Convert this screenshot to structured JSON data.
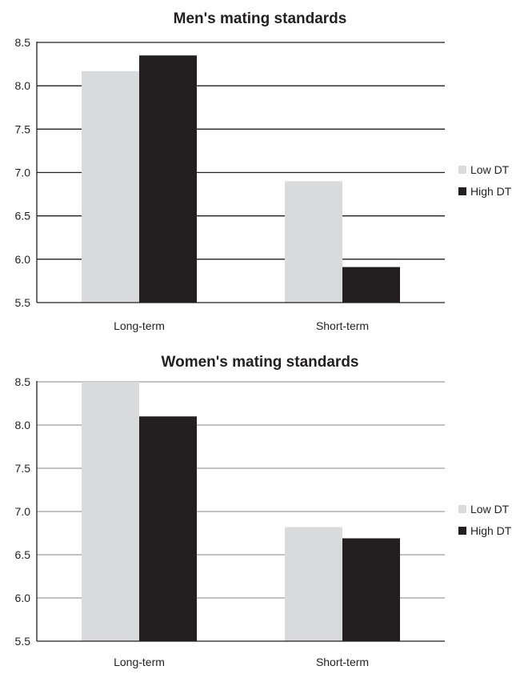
{
  "chart_data": [
    {
      "type": "bar",
      "title": "Men's mating standards",
      "categories": [
        "Long-term",
        "Short-term"
      ],
      "series": [
        {
          "name": "Low DT",
          "values": [
            8.17,
            6.9
          ]
        },
        {
          "name": "High DT",
          "values": [
            8.35,
            5.91
          ]
        }
      ],
      "ylim": [
        5.5,
        8.5
      ],
      "yticks": [
        "5.5",
        "6.0",
        "6.5",
        "7.0",
        "7.5",
        "8.0",
        "8.5"
      ],
      "grid": true,
      "legend_position": "right",
      "colors": {
        "Low DT": "#d9dadb",
        "High DT": "#231f20"
      }
    },
    {
      "type": "bar",
      "title": "Women's mating standards",
      "categories": [
        "Long-term",
        "Short-term"
      ],
      "series": [
        {
          "name": "Low DT",
          "values": [
            8.5,
            6.82
          ]
        },
        {
          "name": "High DT",
          "values": [
            8.1,
            6.69
          ]
        }
      ],
      "ylim": [
        5.5,
        8.5
      ],
      "yticks": [
        "5.5",
        "6.0",
        "6.5",
        "7.0",
        "7.5",
        "8.0",
        "8.5"
      ],
      "grid": true,
      "legend_position": "right",
      "colors": {
        "Low DT": "#d9dadb",
        "High DT": "#231f20"
      }
    }
  ]
}
